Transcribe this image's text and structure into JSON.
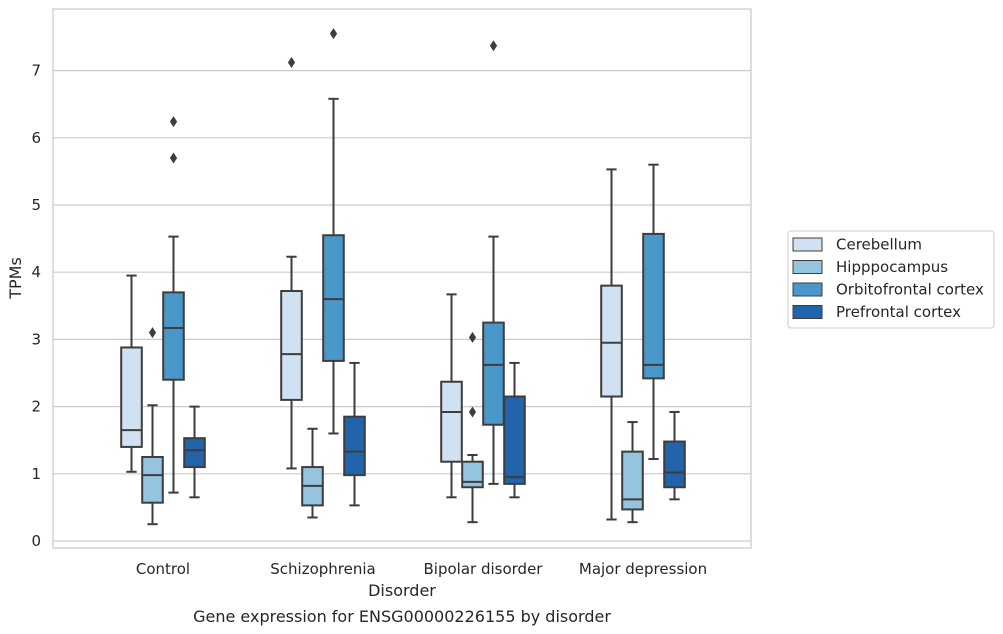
{
  "chart_data": {
    "type": "box",
    "title": "Gene expression for ENSG00000226155 by disorder",
    "xlabel": "Disorder",
    "ylabel": "TPMs",
    "ylim": [
      -0.1,
      7.95
    ],
    "yticks": [
      0,
      1,
      2,
      3,
      4,
      5,
      6,
      7
    ],
    "grid": "horizontal",
    "legend_position": "right",
    "categories": [
      "Control",
      "Schizophrenia",
      "Bipolar disorder",
      "Major depression"
    ],
    "series": [
      {
        "name": "Cerebellum",
        "color": "#d0e1f2",
        "boxes": [
          {
            "whislo": 1.03,
            "q1": 1.4,
            "med": 1.65,
            "q3": 2.88,
            "whishi": 3.95,
            "fliers": []
          },
          {
            "whislo": 1.08,
            "q1": 2.1,
            "med": 2.78,
            "q3": 3.72,
            "whishi": 4.23,
            "fliers": [
              7.12
            ]
          },
          {
            "whislo": 0.65,
            "q1": 1.18,
            "med": 1.92,
            "q3": 2.37,
            "whishi": 3.67,
            "fliers": []
          },
          {
            "whislo": 0.32,
            "q1": 2.15,
            "med": 2.95,
            "q3": 3.8,
            "whishi": 5.53,
            "fliers": []
          }
        ]
      },
      {
        "name": "Hipppocampus",
        "color": "#94c4df",
        "boxes": [
          {
            "whislo": 0.25,
            "q1": 0.57,
            "med": 0.98,
            "q3": 1.25,
            "whishi": 2.02,
            "fliers": [
              3.1
            ]
          },
          {
            "whislo": 0.35,
            "q1": 0.53,
            "med": 0.82,
            "q3": 1.1,
            "whishi": 1.67,
            "fliers": []
          },
          {
            "whislo": 0.28,
            "q1": 0.8,
            "med": 0.88,
            "q3": 1.18,
            "whishi": 1.28,
            "fliers": [
              3.03,
              1.92
            ]
          },
          {
            "whislo": 0.28,
            "q1": 0.47,
            "med": 0.62,
            "q3": 1.33,
            "whishi": 1.77,
            "fliers": []
          }
        ]
      },
      {
        "name": "Orbitofrontal cortex",
        "color": "#4a98c9",
        "boxes": [
          {
            "whislo": 0.72,
            "q1": 2.4,
            "med": 3.17,
            "q3": 3.7,
            "whishi": 4.53,
            "fliers": [
              5.7,
              6.24
            ]
          },
          {
            "whislo": 1.6,
            "q1": 2.68,
            "med": 3.6,
            "q3": 4.55,
            "whishi": 6.58,
            "fliers": [
              7.55
            ]
          },
          {
            "whislo": 0.85,
            "q1": 1.73,
            "med": 2.62,
            "q3": 3.25,
            "whishi": 4.53,
            "fliers": [
              7.37
            ]
          },
          {
            "whislo": 1.22,
            "q1": 2.42,
            "med": 2.62,
            "q3": 4.57,
            "whishi": 5.6,
            "fliers": []
          }
        ]
      },
      {
        "name": "Prefrontal cortex",
        "color": "#2164ab",
        "boxes": [
          {
            "whislo": 0.65,
            "q1": 1.1,
            "med": 1.35,
            "q3": 1.53,
            "whishi": 2.0,
            "fliers": []
          },
          {
            "whislo": 0.53,
            "q1": 0.98,
            "med": 1.33,
            "q3": 1.85,
            "whishi": 2.65,
            "fliers": []
          },
          {
            "whislo": 0.65,
            "q1": 0.85,
            "med": 0.95,
            "q3": 2.15,
            "whishi": 2.65,
            "fliers": []
          },
          {
            "whislo": 0.62,
            "q1": 0.8,
            "med": 1.02,
            "q3": 1.48,
            "whishi": 1.92,
            "fliers": []
          }
        ]
      }
    ]
  }
}
